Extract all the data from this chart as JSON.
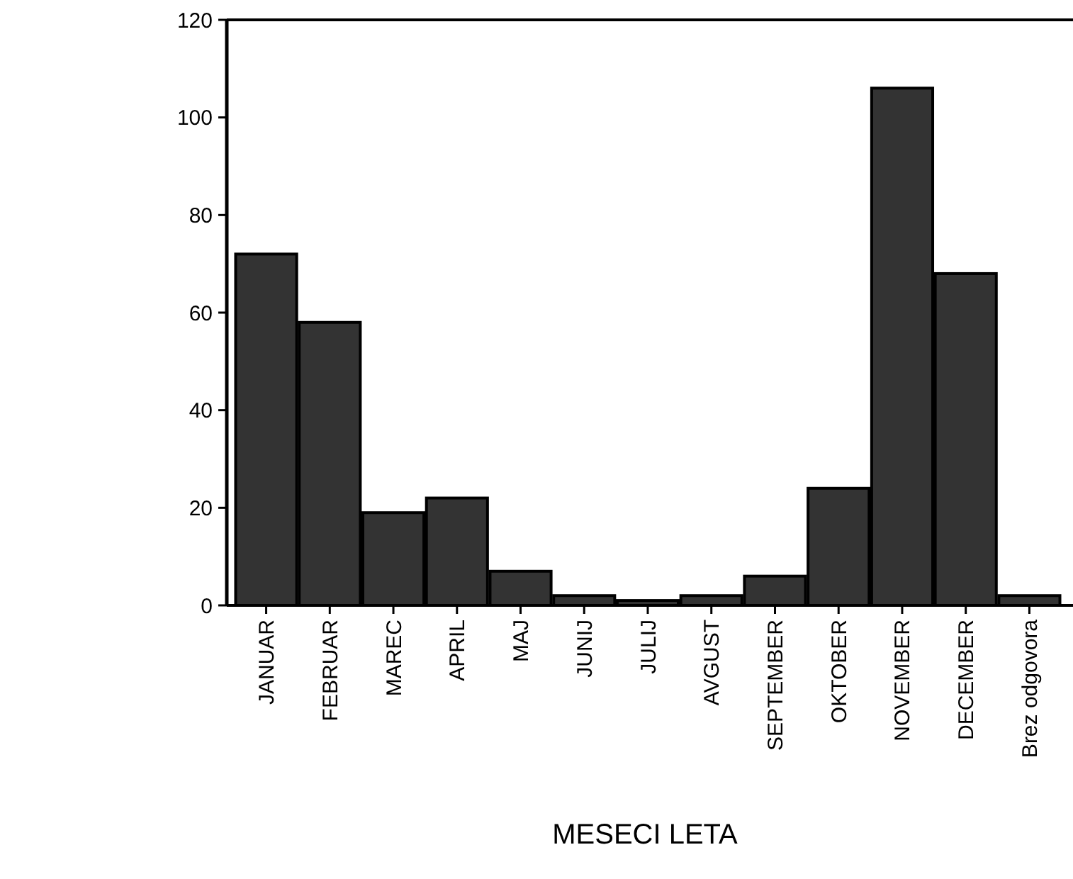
{
  "chart_data": {
    "type": "bar",
    "xlabel": "MESECI LETA",
    "categories": [
      "JANUAR",
      "FEBRUAR",
      "MAREC",
      "APRIL",
      "MAJ",
      "JUNIJ",
      "JULIJ",
      "AVGUST",
      "SEPTEMBER",
      "OKTOBER",
      "NOVEMBER",
      "DECEMBER",
      "Brez odgovora"
    ],
    "values": [
      72,
      58,
      19,
      22,
      7,
      2,
      1,
      2,
      6,
      24,
      106,
      68,
      2
    ],
    "color": "#333333",
    "ylim": [
      0,
      120
    ],
    "yticks": [
      0,
      20,
      40,
      60,
      80,
      100,
      120
    ],
    "grid": false
  }
}
